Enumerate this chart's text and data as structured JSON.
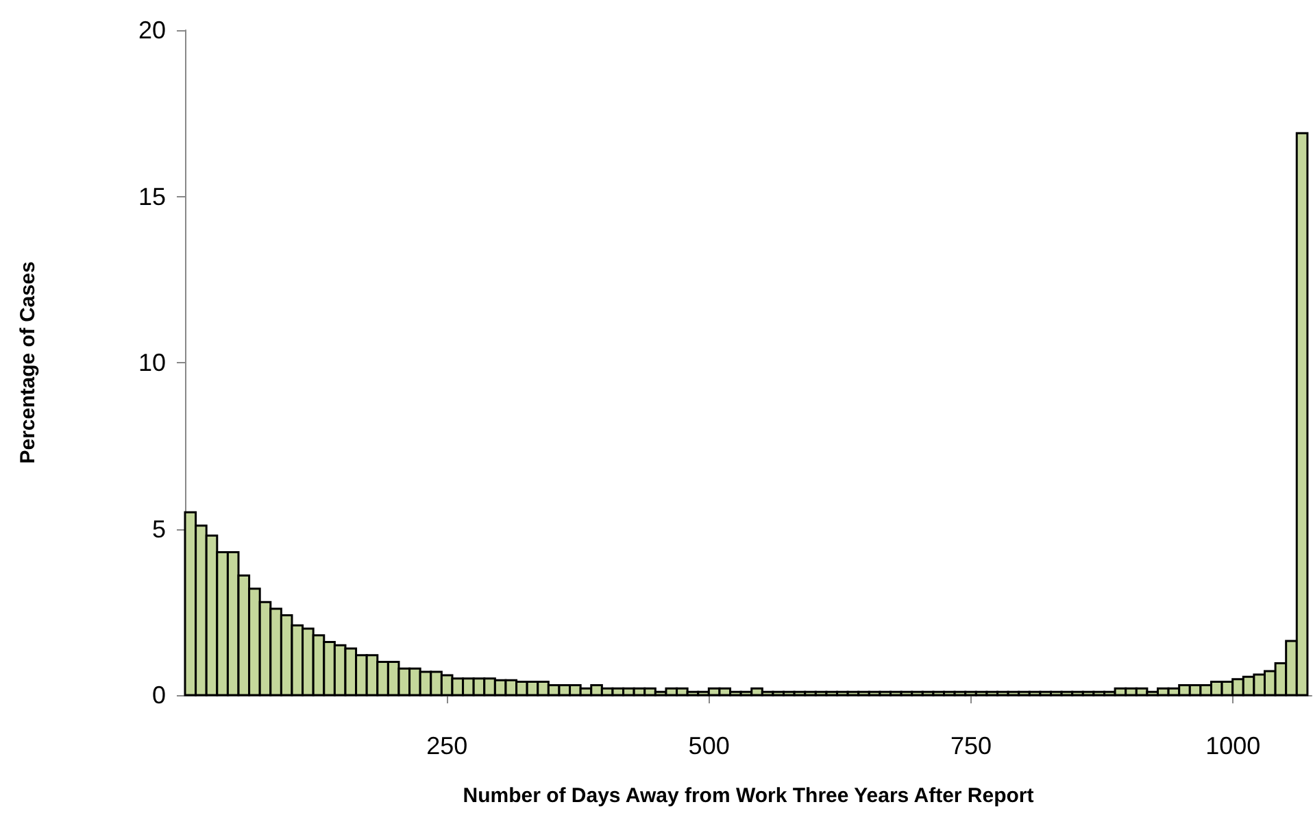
{
  "chart_data": {
    "type": "histogram",
    "xlabel": "Number of Days Away from Work Three Years After Report",
    "ylabel": "Percentage of Cases",
    "bins": [
      0,
      10.2,
      20.4,
      30.6,
      40.8,
      51,
      61.2,
      71.4,
      81.6,
      91.8,
      102,
      112.2,
      122.4,
      132.6,
      142.8,
      153,
      163.2,
      173.4,
      183.6,
      193.8,
      204,
      214.2,
      224.4,
      234.6,
      244.8,
      255,
      265.2,
      275.4,
      285.6,
      295.8,
      306,
      316.2,
      326.4,
      336.6,
      346.8,
      357,
      367.2,
      377.4,
      387.6,
      397.8,
      408,
      418.2,
      428.4,
      438.6,
      448.8,
      459,
      469.2,
      479.4,
      489.6,
      499.8,
      510,
      520.2,
      530.4,
      540.6,
      550.8,
      561,
      571.2,
      581.4,
      591.6,
      601.8,
      612,
      622.2,
      632.4,
      642.6,
      652.8,
      663,
      673.2,
      683.4,
      693.6,
      703.8,
      714,
      724.2,
      734.4,
      744.6,
      754.8,
      765,
      775.2,
      785.4,
      795.6,
      805.8,
      816,
      826.2,
      836.4,
      846.6,
      856.8,
      867,
      877.2,
      887.4,
      897.6,
      907.8,
      918,
      928.2,
      938.4,
      948.6,
      958.8,
      969,
      979.2,
      989.4,
      999.6,
      1009.8,
      1020,
      1030.2,
      1040.4,
      1050.6,
      1060.8,
      1071
    ],
    "values": [
      5.5,
      5.1,
      4.8,
      4.3,
      4.3,
      3.6,
      3.2,
      2.8,
      2.6,
      2.4,
      2.1,
      2.0,
      1.8,
      1.6,
      1.5,
      1.4,
      1.2,
      1.2,
      1.0,
      1.0,
      0.8,
      0.8,
      0.7,
      0.7,
      0.6,
      0.5,
      0.5,
      0.5,
      0.5,
      0.45,
      0.45,
      0.4,
      0.4,
      0.4,
      0.3,
      0.3,
      0.3,
      0.2,
      0.3,
      0.2,
      0.2,
      0.2,
      0.2,
      0.2,
      0.1,
      0.2,
      0.2,
      0.1,
      0.1,
      0.2,
      0.2,
      0.1,
      0.1,
      0.2,
      0.1,
      0.1,
      0.1,
      0.1,
      0.1,
      0.1,
      0.1,
      0.1,
      0.1,
      0.1,
      0.1,
      0.1,
      0.1,
      0.1,
      0.1,
      0.1,
      0.1,
      0.1,
      0.1,
      0.1,
      0.1,
      0.1,
      0.1,
      0.1,
      0.1,
      0.1,
      0.1,
      0.1,
      0.1,
      0.1,
      0.1,
      0.1,
      0.1,
      0.2,
      0.2,
      0.2,
      0.1,
      0.2,
      0.2,
      0.3,
      0.3,
      0.3,
      0.4,
      0.4,
      0.48,
      0.55,
      0.62,
      0.72,
      0.96,
      1.63,
      16.9
    ],
    "color": "#c4d79b",
    "xlim": [
      0,
      1075
    ],
    "xticks": [
      250,
      500,
      750,
      1000
    ],
    "ylim": [
      0,
      20
    ],
    "yticks": [
      0,
      5,
      10,
      15,
      20
    ],
    "grid": false
  }
}
